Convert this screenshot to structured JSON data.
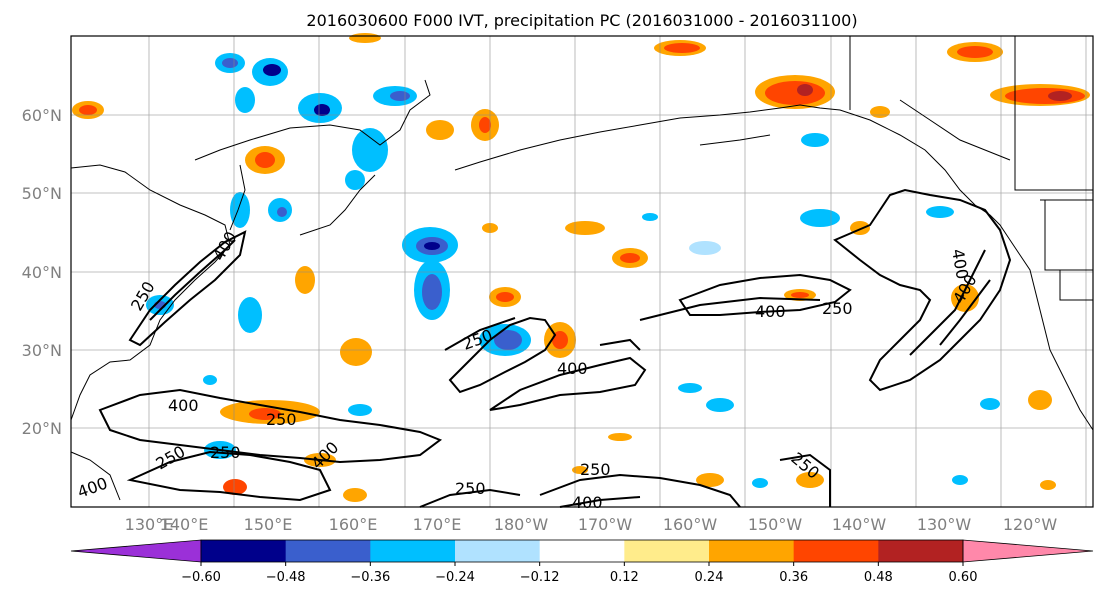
{
  "title": "2016030600 F000 IVT, precipitation PC (2016031000 - 2016031100)",
  "lat_labels": [
    "20°N",
    "30°N",
    "40°N",
    "50°N",
    "60°N"
  ],
  "lon_labels": [
    "130°E",
    "140°E",
    "150°E",
    "160°E",
    "170°E",
    "180°W",
    "170°W",
    "160°W",
    "150°W",
    "140°W",
    "130°W",
    "120°W"
  ],
  "contour_labels": [
    "400",
    "250",
    "400",
    "250",
    "400",
    "250",
    "250",
    "400",
    "250",
    "250",
    "400",
    "250",
    "400",
    "400",
    "250",
    "400",
    "400"
  ],
  "colorbar": {
    "ticks": [
      "−0.60",
      "−0.48",
      "−0.36",
      "−0.24",
      "−0.12",
      "0.12",
      "0.24",
      "0.36",
      "0.48",
      "0.60"
    ],
    "colors": [
      "#9b30d8",
      "#00008b",
      "#3a5fcd",
      "#00bfff",
      "#b0e2ff",
      "#ffffff",
      "#ffec8b",
      "#ffa500",
      "#ff4500",
      "#b22222",
      "#ff88aa"
    ]
  }
}
